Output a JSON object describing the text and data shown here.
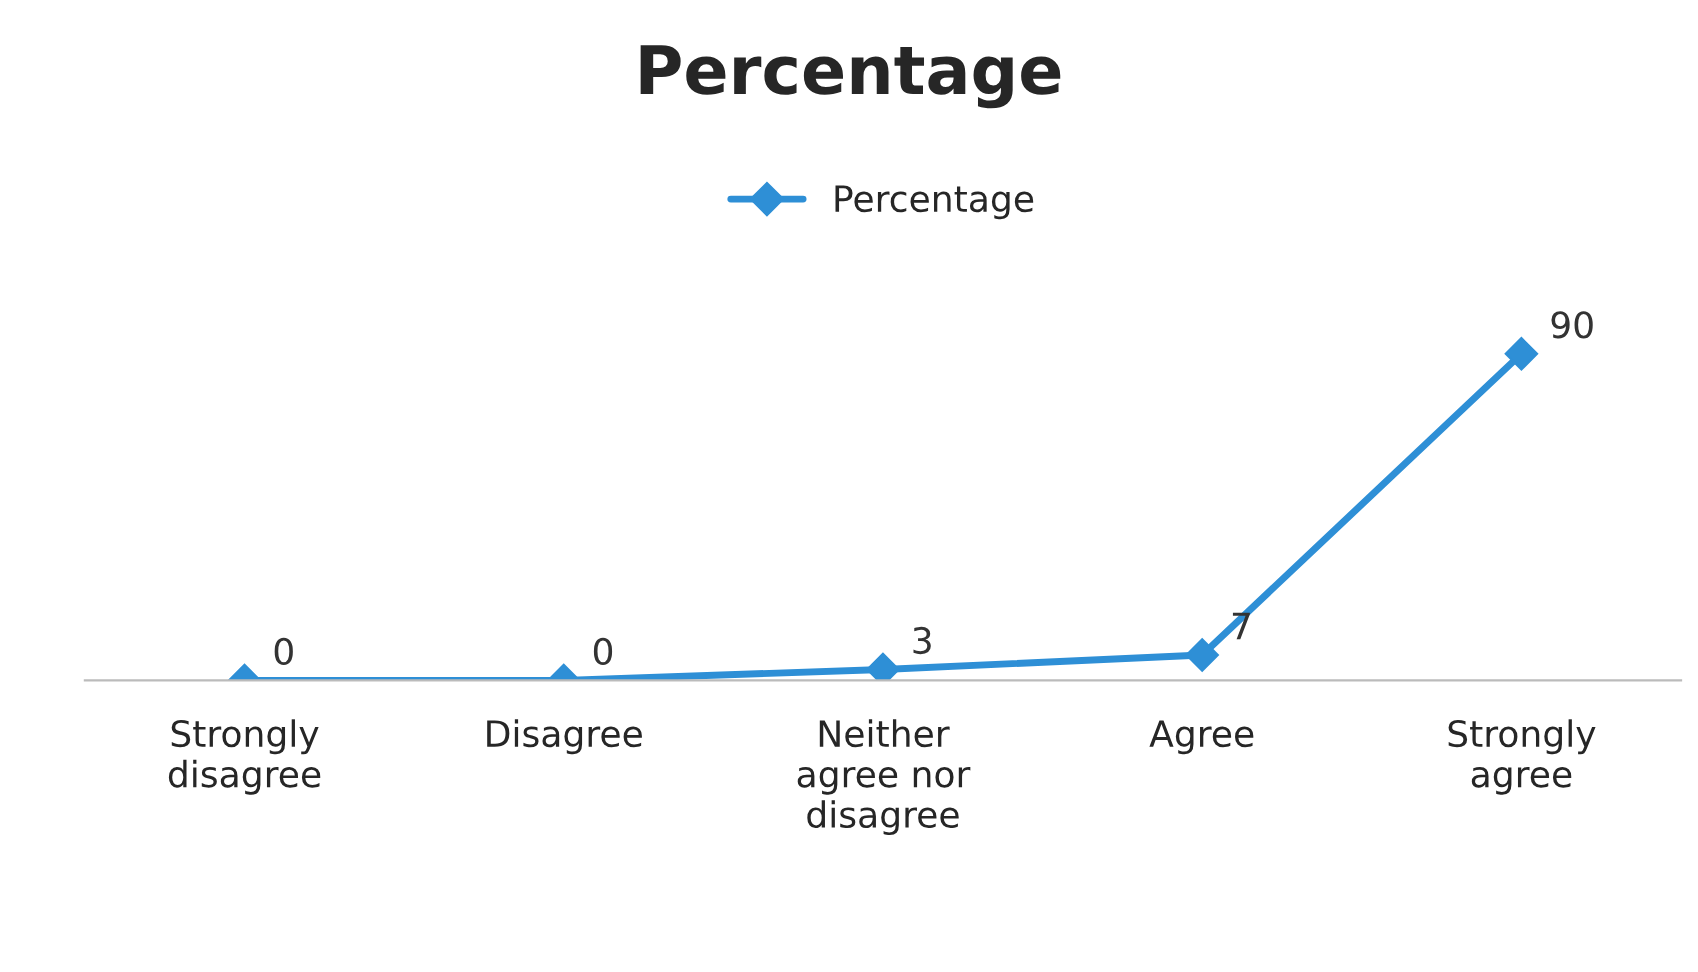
{
  "chart_data": {
    "type": "line",
    "title": "Percentage",
    "categories": [
      "Strongly\ndisagree",
      "Disagree",
      "Neither\nagree nor\ndisagree",
      "Agree",
      "Strongly\nagree"
    ],
    "series": [
      {
        "name": "Percentage",
        "color": "#2e8fd6",
        "values": [
          0,
          0,
          3,
          7,
          90
        ]
      }
    ],
    "tick_labels": "x",
    "data_labels": true,
    "legend": "top",
    "marker": "diamond",
    "line_style": "solid",
    "grid": false
  }
}
